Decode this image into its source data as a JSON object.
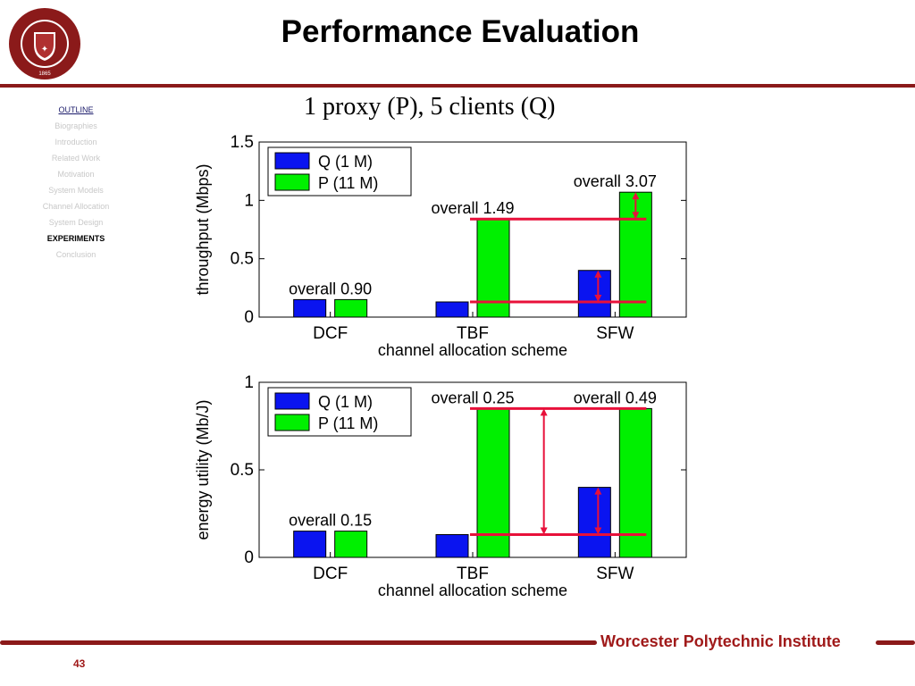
{
  "header": {
    "title": "Performance Evaluation",
    "logo_text_top": "WORCESTER POLYTECHNIC INSTITUTE",
    "logo_year": "1865"
  },
  "sidebar": {
    "items": [
      {
        "label": "OUTLINE"
      },
      {
        "label": "Biographies"
      },
      {
        "label": "Introduction"
      },
      {
        "label": "Related Work"
      },
      {
        "label": "Motivation"
      },
      {
        "label": "System Models"
      },
      {
        "label": "Channel Allocation"
      },
      {
        "label": "System Design"
      },
      {
        "label": "EXPERIMENTS"
      },
      {
        "label": "Conclusion"
      }
    ]
  },
  "subtitle": "1 proxy (P), 5 clients (Q)",
  "chart_data": [
    {
      "type": "bar",
      "categories": [
        "DCF",
        "TBF",
        "SFW"
      ],
      "series": [
        {
          "name": "Q (1 M)",
          "values": [
            0.15,
            0.13,
            0.4
          ],
          "color": "#0a14f0"
        },
        {
          "name": "P (11 M)",
          "values": [
            0.15,
            0.84,
            1.07
          ],
          "color": "#00f000"
        }
      ],
      "xlabel": "channel allocation scheme",
      "ylabel": "throughput (Mbps)",
      "ylim": [
        0,
        1.5
      ],
      "yticks": [
        0,
        0.5,
        1,
        1.5
      ],
      "ytick_labels": [
        "0",
        "0.5",
        "1",
        "1.5"
      ],
      "legend": "top-left",
      "annotations": [
        {
          "text": "overall 0.90",
          "category": "DCF"
        },
        {
          "text": "overall 1.49",
          "category": "TBF"
        },
        {
          "text": "overall 3.07",
          "category": "SFW"
        }
      ],
      "reference_lines": [
        {
          "y": 0.84,
          "from": "TBF",
          "to": "SFW"
        },
        {
          "y": 0.13,
          "from": "TBF",
          "to": "SFW"
        }
      ],
      "arrows": [
        {
          "category": "SFW",
          "from": 0.84,
          "to": 1.07
        },
        {
          "category": "SFW",
          "from": 0.13,
          "to": 0.4
        }
      ]
    },
    {
      "type": "bar",
      "categories": [
        "DCF",
        "TBF",
        "SFW"
      ],
      "series": [
        {
          "name": "Q (1 M)",
          "values": [
            0.15,
            0.13,
            0.4
          ],
          "color": "#0a14f0"
        },
        {
          "name": "P (11 M)",
          "values": [
            0.15,
            0.85,
            0.85
          ],
          "color": "#00f000"
        }
      ],
      "xlabel": "channel allocation scheme",
      "ylabel": "energy utility (Mb/J)",
      "ylim": [
        0,
        1
      ],
      "yticks": [
        0,
        0.5,
        1
      ],
      "ytick_labels": [
        "0",
        "0.5",
        "1"
      ],
      "legend": "top-left",
      "annotations": [
        {
          "text": "overall 0.15",
          "category": "DCF"
        },
        {
          "text": "overall 0.25",
          "category": "TBF"
        },
        {
          "text": "overall 0.49",
          "category": "SFW"
        }
      ],
      "reference_lines": [
        {
          "y": 0.85,
          "from": "TBF",
          "to": "SFW"
        },
        {
          "y": 0.13,
          "from": "TBF",
          "to": "SFW"
        }
      ],
      "arrows": [
        {
          "category": "TBF",
          "from": 0.13,
          "to": 0.85
        },
        {
          "category": "SFW",
          "from": 0.13,
          "to": 0.4
        }
      ]
    }
  ],
  "footer": {
    "institution": "Worcester Polytechnic Institute",
    "page_number": "43"
  },
  "colors": {
    "accent": "#8b1a1a",
    "footer_text": "#a01a1a",
    "arrow": "#e8103a"
  }
}
